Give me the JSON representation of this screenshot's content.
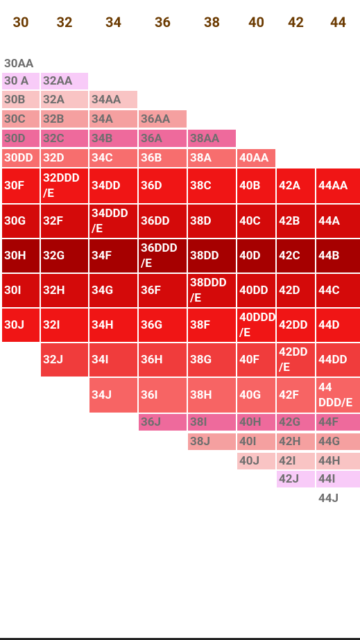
{
  "headers": [
    "30",
    "32",
    "34",
    "36",
    "38",
    "40",
    "42",
    "44"
  ],
  "rows": [
    {
      "cells": [
        "30AA"
      ]
    },
    {
      "cells": [
        "30 A",
        "32AA"
      ]
    },
    {
      "cells": [
        "30B",
        "32A",
        "34AA"
      ]
    },
    {
      "cells": [
        "30C",
        "32B",
        "34A",
        "36AA"
      ]
    },
    {
      "cells": [
        "30D",
        "32C",
        "34B",
        "36A",
        "38AA"
      ]
    },
    {
      "cells": [
        "30DD",
        "32D",
        "34C",
        "36B",
        "38A",
        "40AA"
      ]
    },
    {
      "cells": [
        "30F",
        "32DDD/E",
        "34DD",
        "36D",
        "38C",
        "40B",
        "42A",
        "44AA"
      ]
    },
    {
      "cells": [
        "30G",
        "32F",
        "34DDD/E",
        "36DD",
        "38D",
        "40C",
        "42B",
        "44A"
      ]
    },
    {
      "cells": [
        "30H",
        "32G",
        "34F",
        "36DDD/E",
        "38DD",
        "40D",
        "42C",
        "44B"
      ]
    },
    {
      "cells": [
        "30I",
        "32H",
        "34G",
        "36F",
        "38DDD/E",
        "40DD",
        "42D",
        "44C"
      ]
    },
    {
      "cells": [
        "30J",
        "32I",
        "34H",
        "36G",
        "38F",
        "40DDD/E",
        "42DD",
        "44D"
      ]
    },
    {
      "cells": [
        "32J",
        "34I",
        "36H",
        "38G",
        "40F",
        "42DD/E",
        "44DD"
      ]
    },
    {
      "cells": [
        "34J",
        "36I",
        "38H",
        "40G",
        "42F",
        "44 DDD/E"
      ]
    },
    {
      "cells": [
        "36J",
        "38I",
        "40H",
        "42G",
        "44F"
      ]
    },
    {
      "cells": [
        "38J",
        "40I",
        "42H",
        "44G"
      ]
    },
    {
      "cells": [
        "40J",
        "42I",
        "44H"
      ]
    },
    {
      "cells": [
        "42J",
        "44I"
      ]
    },
    {
      "cells": [
        "44J"
      ]
    }
  ]
}
